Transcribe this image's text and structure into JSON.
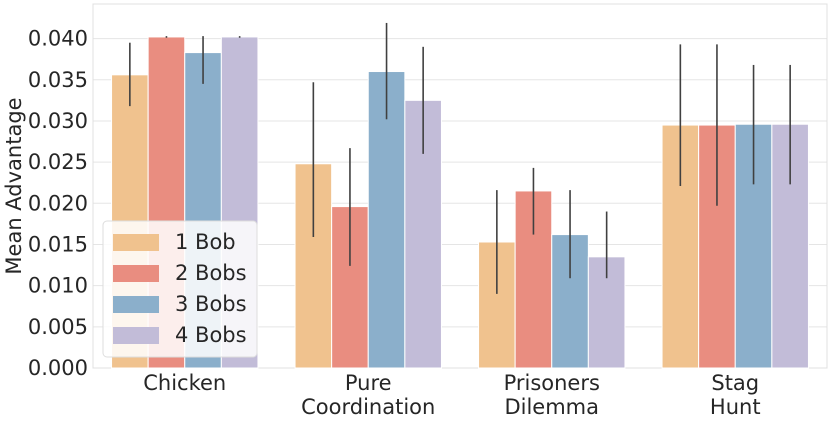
{
  "chart_data": {
    "type": "bar",
    "title": "",
    "xlabel": "",
    "ylabel": "Mean Advantage",
    "ylim": [
      0,
      0.0442
    ],
    "yticks": [
      0.0,
      0.005,
      0.01,
      0.015,
      0.02,
      0.025,
      0.03,
      0.035,
      0.04
    ],
    "ytick_labels": [
      "0.000",
      "0.005",
      "0.010",
      "0.015",
      "0.020",
      "0.025",
      "0.030",
      "0.035",
      "0.040"
    ],
    "grid": "horizontal",
    "categories": [
      {
        "lines": [
          "Chicken"
        ]
      },
      {
        "lines": [
          "Pure",
          "Coordination"
        ]
      },
      {
        "lines": [
          "Prisoners",
          "Dilemma"
        ]
      },
      {
        "lines": [
          "Stag",
          "Hunt"
        ]
      }
    ],
    "series": [
      {
        "name": "1 Bob",
        "color": "#f0c28e",
        "values": [
          0.0356,
          0.0248,
          0.0153,
          0.0295
        ],
        "err_low": [
          0.0318,
          0.0159,
          0.009,
          0.0221
        ],
        "err_high": [
          0.0395,
          0.0347,
          0.0216,
          0.0393
        ]
      },
      {
        "name": "2 Bobs",
        "color": "#e98d80",
        "values": [
          0.0402,
          0.0196,
          0.0215,
          0.0295
        ],
        "err_low": [
          0.0401,
          0.0124,
          0.0162,
          0.0197
        ],
        "err_high": [
          0.0403,
          0.0267,
          0.0243,
          0.0393
        ]
      },
      {
        "name": "3 Bobs",
        "color": "#8bafcb",
        "values": [
          0.0383,
          0.036,
          0.0162,
          0.0296
        ],
        "err_low": [
          0.0345,
          0.0302,
          0.0109,
          0.0223
        ],
        "err_high": [
          0.0403,
          0.0419,
          0.0216,
          0.0368
        ]
      },
      {
        "name": "4 Bobs",
        "color": "#c2bcd8",
        "values": [
          0.0402,
          0.0325,
          0.0135,
          0.0296
        ],
        "err_low": [
          0.0401,
          0.026,
          0.0109,
          0.0223
        ],
        "err_high": [
          0.0403,
          0.039,
          0.019,
          0.0368
        ]
      }
    ],
    "legend": {
      "position": "lower-left"
    }
  }
}
